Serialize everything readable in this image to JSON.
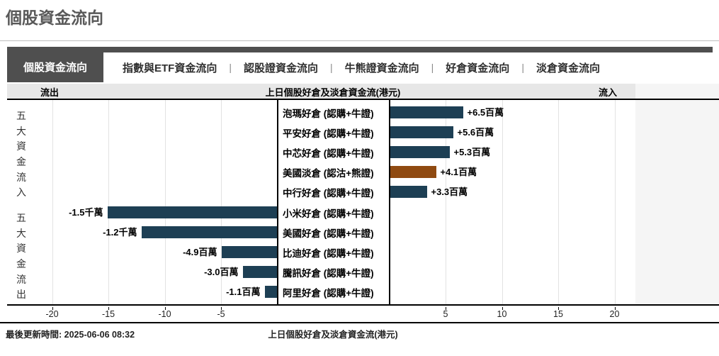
{
  "page": {
    "title": "個股資金流向"
  },
  "tabs": {
    "selected": "個股資金流向",
    "separator": "|",
    "items": [
      "指數與ETF資金流向",
      "認股證資金流向",
      "牛熊證資金流向",
      "好倉資金流向",
      "淡倉資金流向"
    ]
  },
  "chart_header": {
    "left": "流出",
    "center": "上日個股好倉及淡倉資金流(港元)",
    "right": "流入"
  },
  "side_labels": {
    "top": "五大資金流入",
    "bottom": "五大資金流出"
  },
  "colors": {
    "bar_blue": "#1d3f54",
    "bar_brown": "#8f4a11",
    "tab_dark": "#4f4f4f",
    "header_gray": "#e7e7e7",
    "band_gray": "#f5f5f5"
  },
  "footer": {
    "updated": "最後更新時間: 2025-06-06 08:32",
    "axis_title": "上日個股好倉及淡倉資金流(港元)"
  },
  "chart_data": {
    "type": "bar",
    "orientation": "horizontal",
    "title": "上日個股好倉及淡倉資金流(港元)",
    "value_unit": "百萬港元",
    "x_ticks": [
      -20,
      -15,
      -10,
      -5,
      5,
      10,
      15,
      20
    ],
    "xlim": [
      -25,
      25
    ],
    "grid": true,
    "rows": [
      {
        "label": "泡瑪好倉 (認購+牛證)",
        "value": 6.5,
        "display": "+6.5百萬",
        "side": "in",
        "color": "bar_blue"
      },
      {
        "label": "平安好倉 (認購+牛證)",
        "value": 5.6,
        "display": "+5.6百萬",
        "side": "in",
        "color": "bar_blue"
      },
      {
        "label": "中芯好倉 (認購+牛證)",
        "value": 5.3,
        "display": "+5.3百萬",
        "side": "in",
        "color": "bar_blue"
      },
      {
        "label": "美國淡倉 (認沽+熊證)",
        "value": 4.1,
        "display": "+4.1百萬",
        "side": "in",
        "color": "bar_brown"
      },
      {
        "label": "中行好倉 (認購+牛證)",
        "value": 3.3,
        "display": "+3.3百萬",
        "side": "in",
        "color": "bar_blue"
      },
      {
        "label": "小米好倉 (認購+牛證)",
        "value": -15,
        "display": "-1.5千萬",
        "side": "out",
        "color": "bar_blue"
      },
      {
        "label": "美國好倉 (認購+牛證)",
        "value": -12,
        "display": "-1.2千萬",
        "side": "out",
        "color": "bar_blue"
      },
      {
        "label": "比迪好倉 (認購+牛證)",
        "value": -4.9,
        "display": "-4.9百萬",
        "side": "out",
        "color": "bar_blue"
      },
      {
        "label": "騰訊好倉 (認購+牛證)",
        "value": -3.0,
        "display": "-3.0百萬",
        "side": "out",
        "color": "bar_blue"
      },
      {
        "label": "阿里好倉 (認購+牛證)",
        "value": -1.1,
        "display": "-1.1百萬",
        "side": "out",
        "color": "bar_blue"
      }
    ]
  }
}
